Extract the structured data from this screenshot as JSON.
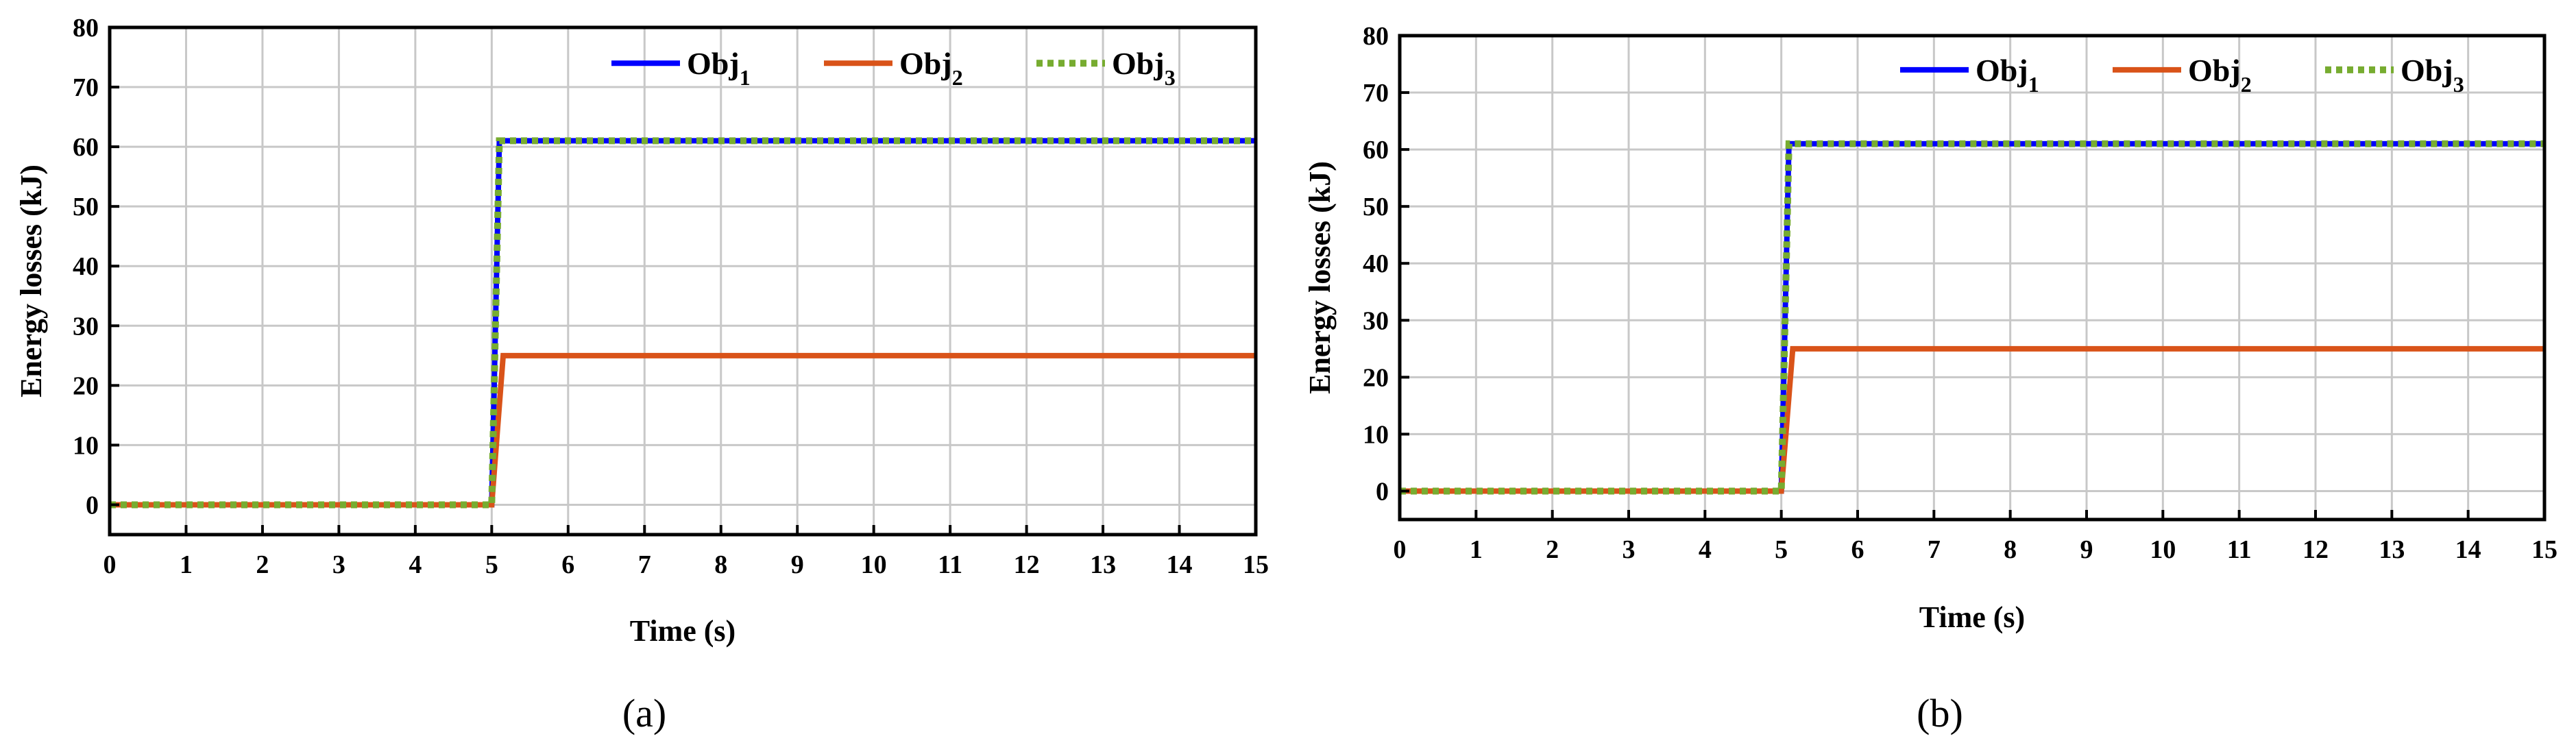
{
  "chart_data": [
    {
      "type": "line",
      "caption": "(a)",
      "xlabel": "Time (s)",
      "ylabel": "Energy losses (kJ)",
      "xlim": [
        0,
        15
      ],
      "ylim": [
        -5,
        80
      ],
      "xticks": [
        0,
        1,
        2,
        3,
        4,
        5,
        6,
        7,
        8,
        9,
        10,
        11,
        12,
        13,
        14,
        15
      ],
      "yticks": [
        0,
        10,
        20,
        30,
        40,
        50,
        60,
        70,
        80
      ],
      "grid": true,
      "legend_position": "top-right",
      "series": [
        {
          "name": "Obj",
          "subscript": "1",
          "color": "#0000ff",
          "style": "solid",
          "x": [
            0,
            5,
            5.1,
            15
          ],
          "y": [
            0,
            0,
            61,
            61
          ]
        },
        {
          "name": "Obj",
          "subscript": "2",
          "color": "#d95319",
          "style": "solid",
          "x": [
            0,
            5,
            5.15,
            15
          ],
          "y": [
            0,
            0,
            25,
            25
          ]
        },
        {
          "name": "Obj",
          "subscript": "3",
          "color": "#77ac30",
          "style": "dotted",
          "x": [
            0,
            5,
            5.1,
            15
          ],
          "y": [
            0,
            0,
            61,
            61
          ]
        }
      ]
    },
    {
      "type": "line",
      "caption": "(b)",
      "xlabel": "Time (s)",
      "ylabel": "Energy losses (kJ)",
      "xlim": [
        0,
        15
      ],
      "ylim": [
        -5,
        80
      ],
      "xticks": [
        0,
        1,
        2,
        3,
        4,
        5,
        6,
        7,
        8,
        9,
        10,
        11,
        12,
        13,
        14,
        15
      ],
      "yticks": [
        0,
        10,
        20,
        30,
        40,
        50,
        60,
        70,
        80
      ],
      "grid": true,
      "legend_position": "top-right",
      "series": [
        {
          "name": "Obj",
          "subscript": "1",
          "color": "#0000ff",
          "style": "solid",
          "x": [
            0,
            5,
            5.1,
            15
          ],
          "y": [
            0,
            0,
            61,
            61
          ]
        },
        {
          "name": "Obj",
          "subscript": "2",
          "color": "#d95319",
          "style": "solid",
          "x": [
            0,
            5,
            5.15,
            15
          ],
          "y": [
            0,
            0,
            25,
            25
          ]
        },
        {
          "name": "Obj",
          "subscript": "3",
          "color": "#77ac30",
          "style": "dotted",
          "x": [
            0,
            5,
            5.1,
            15
          ],
          "y": [
            0,
            0,
            61,
            61
          ]
        }
      ]
    }
  ]
}
